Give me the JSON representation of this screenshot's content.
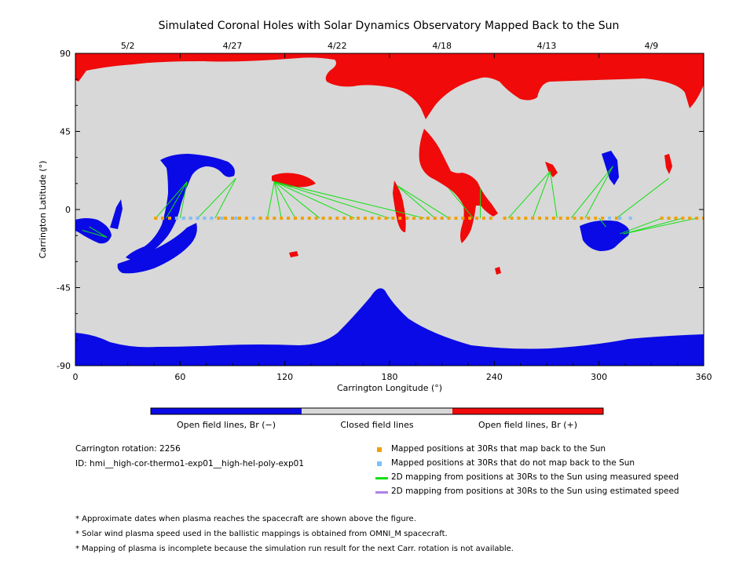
{
  "chart_data": {
    "type": "map",
    "title": "Simulated Coronal Holes with Solar Dynamics Observatory Mapped Back to the Sun",
    "xlabel": "Carrington Longitude (°)",
    "ylabel": "Carrington Latitude (°)",
    "xlim": [
      0,
      360
    ],
    "ylim": [
      -90,
      90
    ],
    "x_ticks": [
      "0",
      "60",
      "120",
      "180",
      "240",
      "300",
      "360"
    ],
    "x_tick_values": [
      0,
      60,
      120,
      180,
      240,
      300,
      360
    ],
    "y_ticks": [
      "90",
      "45",
      "0",
      "-45",
      "-90"
    ],
    "y_tick_values": [
      90,
      45,
      0,
      -45,
      -90
    ],
    "top_dates": [
      {
        "label": "5/2",
        "lon": 30
      },
      {
        "label": "4/27",
        "lon": 90
      },
      {
        "label": "4/22",
        "lon": 150
      },
      {
        "label": "4/18",
        "lon": 210
      },
      {
        "label": "4/13",
        "lon": 270
      },
      {
        "label": "4/9",
        "lon": 330
      }
    ],
    "colors": {
      "negative": "#0a0ae6",
      "closed": "#d8d8d8",
      "positive": "#f00a0a",
      "mapped": "#f0a000",
      "unmapped": "#7fbfff",
      "measured": "#10e010",
      "estimated": "#b080e8"
    },
    "mapped_points_lon": [
      46,
      50,
      54,
      58,
      62,
      66,
      70,
      74,
      78,
      82,
      86,
      90,
      94,
      98,
      106,
      110,
      114,
      118,
      122,
      126,
      130,
      134,
      138,
      142,
      146,
      150,
      154,
      158,
      162,
      166,
      170,
      174,
      178,
      182,
      186,
      190,
      194,
      198,
      202,
      206,
      210,
      214,
      218,
      222,
      226,
      230,
      234,
      238,
      246,
      250,
      254,
      258,
      262,
      266,
      270,
      274,
      278,
      282,
      286,
      290,
      294,
      298,
      302,
      306,
      310,
      336,
      340,
      344,
      348,
      352,
      356,
      360
    ],
    "unmapped_points_lon": [
      58,
      62,
      66,
      70,
      74,
      78,
      84,
      92,
      102,
      306,
      312,
      318
    ],
    "measured_lines": [
      {
        "from": [
          4,
          -12
        ],
        "to": [
          18,
          -16
        ]
      },
      {
        "from": [
          8,
          -10
        ],
        "to": [
          18,
          -16
        ]
      },
      {
        "from": [
          46,
          -5
        ],
        "to": [
          64,
          16
        ]
      },
      {
        "from": [
          52,
          -5
        ],
        "to": [
          64,
          16
        ]
      },
      {
        "from": [
          60,
          -5
        ],
        "to": [
          64,
          16
        ]
      },
      {
        "from": [
          70,
          -5
        ],
        "to": [
          92,
          18
        ]
      },
      {
        "from": [
          80,
          -5
        ],
        "to": [
          92,
          18
        ]
      },
      {
        "from": [
          110,
          -5
        ],
        "to": [
          114,
          16
        ]
      },
      {
        "from": [
          118,
          -5
        ],
        "to": [
          114,
          16
        ]
      },
      {
        "from": [
          126,
          -5
        ],
        "to": [
          114,
          16
        ]
      },
      {
        "from": [
          140,
          -5
        ],
        "to": [
          114,
          16
        ]
      },
      {
        "from": [
          160,
          -5
        ],
        "to": [
          114,
          16
        ]
      },
      {
        "from": [
          180,
          -5
        ],
        "to": [
          114,
          16
        ]
      },
      {
        "from": [
          200,
          -5
        ],
        "to": [
          114,
          16
        ]
      },
      {
        "from": [
          206,
          -5
        ],
        "to": [
          184,
          14
        ]
      },
      {
        "from": [
          214,
          -5
        ],
        "to": [
          184,
          14
        ]
      },
      {
        "from": [
          228,
          -5
        ],
        "to": [
          214,
          12
        ]
      },
      {
        "from": [
          232,
          -5
        ],
        "to": [
          232,
          12
        ]
      },
      {
        "from": [
          248,
          -5
        ],
        "to": [
          272,
          22
        ]
      },
      {
        "from": [
          262,
          -5
        ],
        "to": [
          272,
          22
        ]
      },
      {
        "from": [
          276,
          -5
        ],
        "to": [
          272,
          22
        ]
      },
      {
        "from": [
          284,
          -5
        ],
        "to": [
          308,
          25
        ]
      },
      {
        "from": [
          292,
          -5
        ],
        "to": [
          308,
          25
        ]
      },
      {
        "from": [
          300,
          -5
        ],
        "to": [
          304,
          -10
        ]
      },
      {
        "from": [
          310,
          -5
        ],
        "to": [
          340,
          18
        ]
      },
      {
        "from": [
          336,
          -5
        ],
        "to": [
          312,
          -14
        ]
      },
      {
        "from": [
          348,
          -5
        ],
        "to": [
          314,
          -14
        ]
      },
      {
        "from": [
          356,
          -5
        ],
        "to": [
          314,
          -14
        ]
      }
    ],
    "colorbar": {
      "labels": [
        "Open field lines, Br (−)",
        "Closed field lines",
        "Open field lines, Br (+)"
      ]
    },
    "legend": {
      "placement": "bottom-right",
      "entries": [
        {
          "label": "Mapped positions at 30Rs that map back to the Sun",
          "marker": "square",
          "color": "#f0a000"
        },
        {
          "label": "Mapped positions at 30Rs that do not map back to the Sun",
          "marker": "square",
          "color": "#7fbfff"
        },
        {
          "label": "2D mapping from positions at 30Rs to the Sun using measured speed",
          "marker": "line",
          "color": "#10e010"
        },
        {
          "label": "2D mapping from positions at 30Rs to the Sun using estimated speed",
          "marker": "line",
          "color": "#b080e8"
        }
      ]
    }
  },
  "info": {
    "rotation": "Carrington rotation: 2256",
    "id": "ID: hmi__high-cor-thermo1-exp01__high-hel-poly-exp01"
  },
  "notes": [
    "* Approximate dates when plasma reaches the spacecraft are shown above the figure.",
    "* Solar wind plasma speed used in the ballistic mappings is obtained from OMNI_M spacecraft.",
    "* Mapping of plasma is incomplete because the simulation run result for the next Carr. rotation is not available."
  ]
}
